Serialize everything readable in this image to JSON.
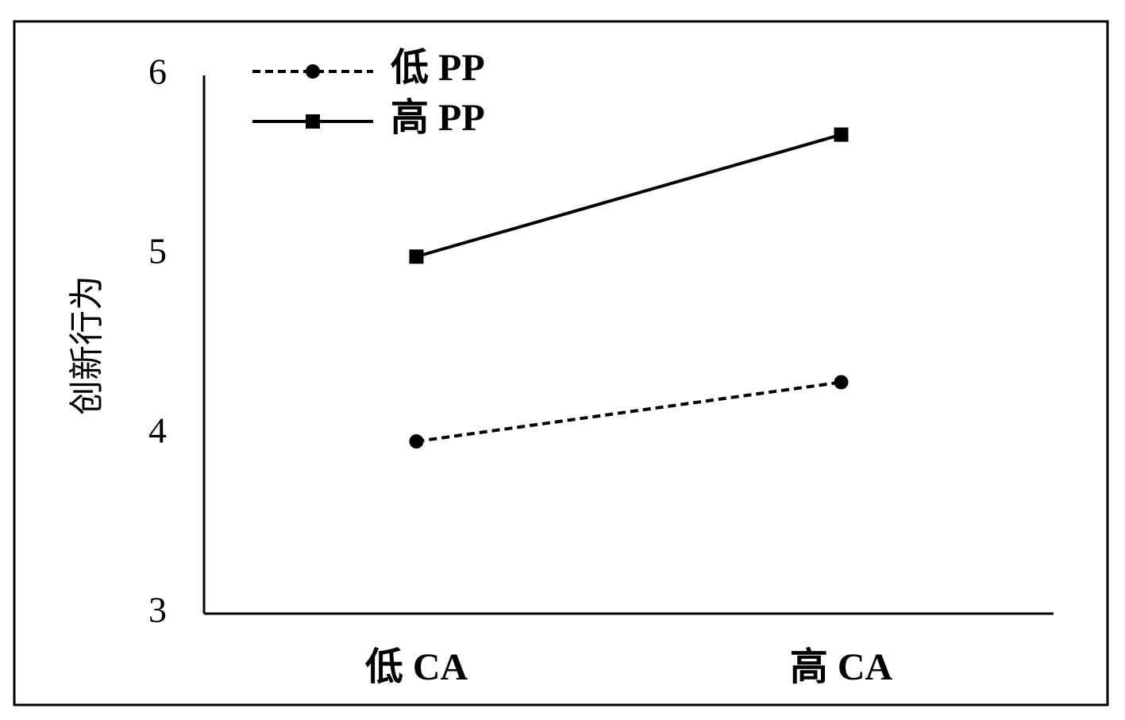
{
  "chart_data": {
    "type": "line",
    "y_label": "创新行为",
    "categories": [
      "低 CA",
      "高 CA"
    ],
    "series": [
      {
        "name": "低 PP",
        "color": "#000000",
        "line_style": "dashed",
        "marker": "circle",
        "values": [
          3.96,
          4.29
        ]
      },
      {
        "name": "高 PP",
        "color": "#000000",
        "line_style": "solid",
        "marker": "square",
        "values": [
          4.99,
          5.67
        ]
      }
    ],
    "ylim": [
      3,
      6
    ],
    "yticks": [
      3,
      4,
      5,
      6
    ],
    "grid": false,
    "legend": "upper left"
  }
}
